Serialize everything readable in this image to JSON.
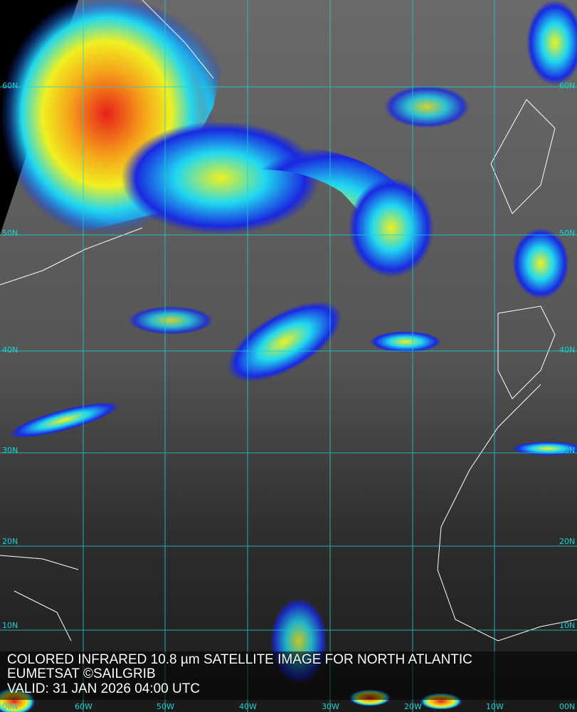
{
  "caption": {
    "line1": "COLORED INFRARED 10.8 µm SATELLITE IMAGE FOR NORTH ATLANTIC",
    "line2": "EUMETSAT ©SAILGRIB",
    "line3": "VALID:  31 JAN 2026 04:00 UTC"
  },
  "grid": {
    "latitudes": [
      "60N",
      "50N",
      "40N",
      "30N",
      "20N",
      "10N",
      "00N"
    ],
    "longitudes": [
      "60W",
      "50W",
      "40W",
      "30W",
      "20W",
      "10W",
      "00N"
    ],
    "color": "#19d3d3"
  },
  "palette": {
    "cold_red": "#e8201a",
    "orange": "#f5a21a",
    "yellow": "#f0f020",
    "cyan": "#20d8f0",
    "blue": "#1a28e0",
    "coastline": "#ffffff"
  }
}
